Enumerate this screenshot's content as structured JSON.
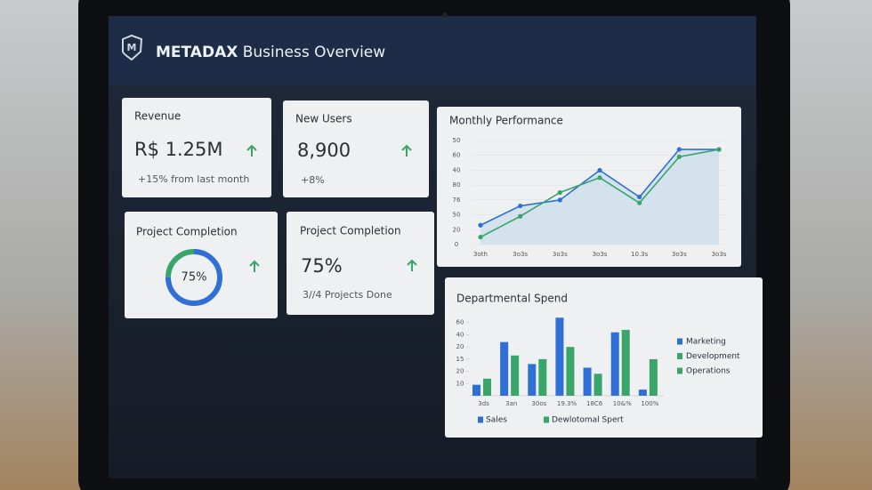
{
  "header": {
    "title_bold": "METADAX",
    "title_rest": "Business Overview"
  },
  "cards": [
    {
      "label": "Revenue",
      "value": "R$ 1.25M",
      "note": "+15% from last month"
    },
    {
      "label": "New Users",
      "value": "8,900",
      "note": "+8%"
    },
    {
      "label": "Project Completion",
      "donut": {
        "value": 75,
        "label": "75%"
      }
    },
    {
      "label": "Project Completion",
      "value": "75%",
      "note": "3//4 Projects Done"
    }
  ],
  "chart_data": [
    {
      "type": "line",
      "title": "Monthly Performance",
      "categories": [
        "3oth",
        "3o3s",
        "3o3s",
        "3o3s",
        "10.3s",
        "3o3s",
        "3o3s"
      ],
      "series": [
        {
          "color": "#2f6fd6",
          "values": [
            13,
            26,
            30,
            50,
            32,
            64,
            64
          ]
        },
        {
          "color": "#3aa56a",
          "values": [
            5,
            19,
            35,
            45,
            28,
            59,
            64
          ]
        }
      ],
      "ylim": [
        0,
        70
      ],
      "yticks": [
        0,
        {
          "value": 10,
          "label": "20"
        },
        {
          "value": 20,
          "label": "50"
        },
        {
          "value": 30,
          "label": "76"
        },
        {
          "value": 40,
          "label": "80"
        },
        {
          "value": 50,
          "label": "40"
        },
        60,
        {
          "value": 70,
          "label": "50"
        }
      ],
      "grid": true,
      "area": true
    },
    {
      "type": "bar",
      "title": "Departmental Spend",
      "categories": [
        "3ds",
        "3an",
        "30os",
        "19.3%",
        "18C6",
        "10&%",
        "100%"
      ],
      "series": [
        {
          "name": "Sales",
          "color": "#2f6fd6",
          "values": [
            9,
            44,
            26,
            64,
            23,
            52,
            5
          ]
        },
        {
          "name": "Dewlotomal Spert",
          "color": "#3aa56a",
          "values": [
            14,
            33,
            30,
            40,
            18,
            54,
            30
          ]
        }
      ],
      "legend_items": [
        {
          "label": "Marketing",
          "color": "#2f6fd6"
        },
        {
          "label": "Development",
          "color": "#3aa56a"
        },
        {
          "label": "Operations",
          "color": "#3aa56a"
        }
      ],
      "ylim": [
        0,
        70
      ],
      "yticks": [
        10,
        20,
        {
          "value": 30,
          "label": "15"
        },
        {
          "value": 40,
          "label": "20"
        },
        {
          "value": 50,
          "label": "40"
        },
        60
      ]
    }
  ]
}
